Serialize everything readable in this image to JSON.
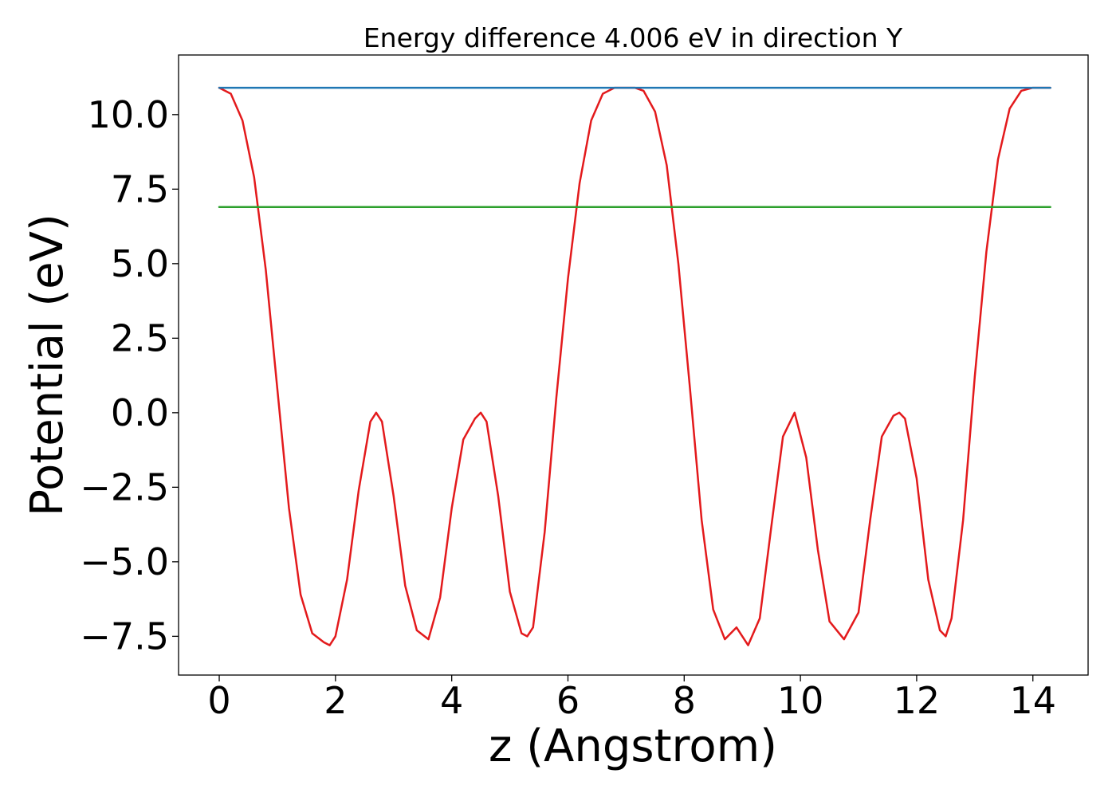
{
  "chart_data": {
    "type": "line",
    "title": "Energy difference 4.006 eV in direction Y",
    "xlabel": "z (Angstrom)",
    "ylabel": "Potential (eV)",
    "xlim": [
      -0.7,
      14.95
    ],
    "ylim": [
      -8.8,
      12.0
    ],
    "x_ticks": [
      0,
      2,
      4,
      6,
      8,
      10,
      12,
      14
    ],
    "x_tick_labels": [
      "0",
      "2",
      "4",
      "6",
      "8",
      "10",
      "12",
      "14"
    ],
    "y_ticks": [
      -7.5,
      -5.0,
      -2.5,
      0.0,
      2.5,
      5.0,
      7.5,
      10.0
    ],
    "y_tick_labels": [
      "−7.5",
      "−5.0",
      "−2.5",
      "0.0",
      "2.5",
      "5.0",
      "7.5",
      "10.0"
    ],
    "grid": false,
    "legend": "none",
    "series": [
      {
        "color": "#e31a1c",
        "x": [
          0.0,
          0.2,
          0.4,
          0.6,
          0.8,
          1.0,
          1.2,
          1.4,
          1.6,
          1.8,
          1.9,
          2.0,
          2.2,
          2.4,
          2.6,
          2.7,
          2.8,
          3.0,
          3.2,
          3.4,
          3.6,
          3.8,
          4.0,
          4.2,
          4.4,
          4.5,
          4.6,
          4.8,
          5.0,
          5.2,
          5.3,
          5.4,
          5.6,
          5.8,
          6.0,
          6.2,
          6.4,
          6.6,
          6.8,
          7.0,
          7.15,
          7.3,
          7.5,
          7.7,
          7.9,
          8.1,
          8.3,
          8.5,
          8.7,
          8.9,
          9.1,
          9.3,
          9.5,
          9.7,
          9.9,
          10.1,
          10.3,
          10.5,
          10.75,
          11.0,
          11.2,
          11.4,
          11.6,
          11.7,
          11.8,
          12.0,
          12.2,
          12.4,
          12.5,
          12.6,
          12.8,
          13.0,
          13.2,
          13.4,
          13.6,
          13.8,
          14.0,
          14.2,
          14.3
        ],
        "y": [
          10.9,
          10.7,
          9.8,
          7.9,
          4.8,
          0.8,
          -3.2,
          -6.1,
          -7.4,
          -7.7,
          -7.8,
          -7.5,
          -5.6,
          -2.6,
          -0.3,
          0.0,
          -0.3,
          -2.8,
          -5.8,
          -7.3,
          -7.6,
          -6.2,
          -3.2,
          -0.9,
          -0.2,
          0.0,
          -0.3,
          -2.8,
          -6.0,
          -7.4,
          -7.5,
          -7.2,
          -4.0,
          0.5,
          4.5,
          7.7,
          9.8,
          10.7,
          10.9,
          10.9,
          10.9,
          10.8,
          10.1,
          8.3,
          5.0,
          0.8,
          -3.6,
          -6.6,
          -7.6,
          -7.2,
          -7.8,
          -6.9,
          -3.8,
          -0.8,
          0.0,
          -1.5,
          -4.6,
          -7.0,
          -7.6,
          -6.7,
          -3.6,
          -0.8,
          -0.1,
          0.0,
          -0.2,
          -2.2,
          -5.6,
          -7.3,
          -7.5,
          -6.9,
          -3.6,
          1.2,
          5.4,
          8.5,
          10.2,
          10.8,
          10.9,
          10.9,
          10.9
        ]
      },
      {
        "color": "#1f77b4",
        "x": [
          0.0,
          14.3
        ],
        "y": [
          10.9,
          10.9
        ]
      },
      {
        "color": "#2ca02c",
        "x": [
          0.0,
          14.3
        ],
        "y": [
          6.9,
          6.9
        ]
      }
    ]
  }
}
